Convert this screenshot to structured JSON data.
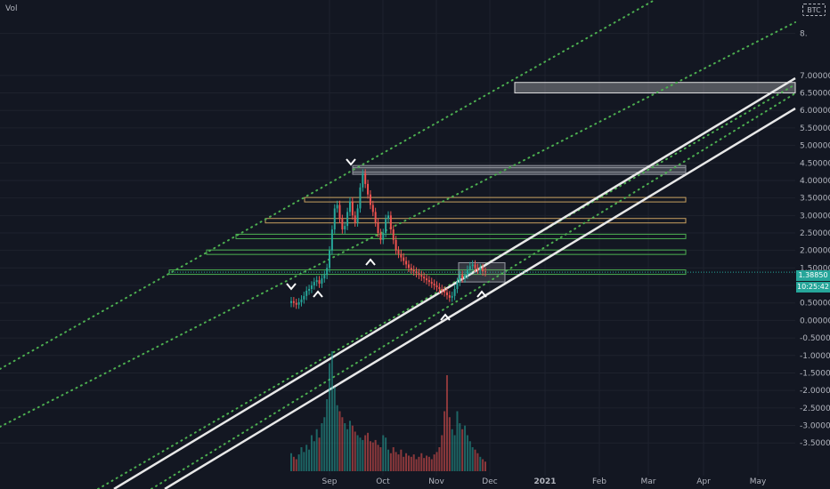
{
  "header": {
    "indicator_label": "Vol",
    "currency": "BTC"
  },
  "price_tags": {
    "last_price": "1.38850",
    "countdown": "10:25:42"
  },
  "colors": {
    "background": "#131722",
    "grid": "#1e222d",
    "up": "#26a69a",
    "down": "#ef5350",
    "channel": "#e8e8e8",
    "dotted": "#4caf50",
    "green_level": "#4caf50",
    "orange_level": "#c8a060",
    "label_tag": "#26a69a"
  },
  "chart_data": {
    "type": "candlestick",
    "x_axis_labels": [
      "Sep",
      "Oct",
      "Nov",
      "Dec",
      "2021",
      "Feb",
      "Mar",
      "Apr",
      "May"
    ],
    "y_axis_labels": [
      "8.",
      "7.00000",
      "6.50000",
      "6.00000",
      "5.50000",
      "5.00000",
      "4.50000",
      "4.00000",
      "3.50000",
      "3.00000",
      "2.50000",
      "2.00000",
      "1.50000",
      "1.00000",
      "0.50000",
      "0.00000",
      "-0.50000",
      "-1.00000",
      "-1.50000",
      "-2.00000",
      "-2.50000",
      "-3.00000",
      "-3.50000"
    ],
    "y_range": [
      -3.8,
      8.8
    ],
    "series_close": [
      0.55,
      0.5,
      0.45,
      0.52,
      0.6,
      0.7,
      0.85,
      0.9,
      1.0,
      1.1,
      1.15,
      1.05,
      1.2,
      1.3,
      1.5,
      2.0,
      2.6,
      3.2,
      3.3,
      2.9,
      2.6,
      2.7,
      3.1,
      3.4,
      3.0,
      2.8,
      3.2,
      3.8,
      4.2,
      3.9,
      3.6,
      3.3,
      3.1,
      2.8,
      2.5,
      2.3,
      2.5,
      2.9,
      3.0,
      2.6,
      2.3,
      2.0,
      1.9,
      1.8,
      1.7,
      1.6,
      1.5,
      1.45,
      1.4,
      1.35,
      1.3,
      1.25,
      1.2,
      1.15,
      1.1,
      1.05,
      1.0,
      0.95,
      0.9,
      0.85,
      0.8,
      0.72,
      0.65,
      0.7,
      0.9,
      1.1,
      1.3,
      1.2,
      1.3,
      1.45,
      1.55,
      1.6,
      1.5,
      1.45,
      1.5,
      1.4,
      1.38
    ],
    "volume": [
      0.15,
      0.12,
      0.1,
      0.14,
      0.2,
      0.16,
      0.22,
      0.18,
      0.3,
      0.25,
      0.35,
      0.28,
      0.4,
      0.45,
      0.6,
      0.9,
      1.0,
      0.7,
      0.55,
      0.5,
      0.45,
      0.4,
      0.35,
      0.42,
      0.38,
      0.33,
      0.3,
      0.28,
      0.26,
      0.3,
      0.32,
      0.25,
      0.24,
      0.26,
      0.22,
      0.2,
      0.3,
      0.28,
      0.18,
      0.15,
      0.2,
      0.16,
      0.14,
      0.18,
      0.12,
      0.15,
      0.13,
      0.12,
      0.14,
      0.1,
      0.12,
      0.15,
      0.11,
      0.13,
      0.12,
      0.1,
      0.14,
      0.16,
      0.2,
      0.3,
      0.5,
      0.8,
      0.45,
      0.35,
      0.3,
      0.5,
      0.4,
      0.35,
      0.38,
      0.3,
      0.25,
      0.2,
      0.18,
      0.15,
      0.12,
      0.1,
      0.08
    ],
    "horizontal_levels": [
      {
        "price": 1.38,
        "from": "Sep",
        "color": "green"
      },
      {
        "price": 1.95,
        "from": "Sep",
        "color": "green"
      },
      {
        "price": 2.4,
        "from": "Sep",
        "color": "green"
      },
      {
        "price": 2.85,
        "from": "Sep",
        "color": "orange"
      },
      {
        "price": 3.45,
        "from": "Sep",
        "color": "orange"
      },
      {
        "price": 4.3,
        "from": "Sep",
        "color": "gray"
      }
    ],
    "boxes": [
      {
        "price_low": 6.5,
        "price_high": 6.8,
        "label": ""
      },
      {
        "price_low": 1.1,
        "price_high": 1.65,
        "label": ""
      }
    ]
  }
}
